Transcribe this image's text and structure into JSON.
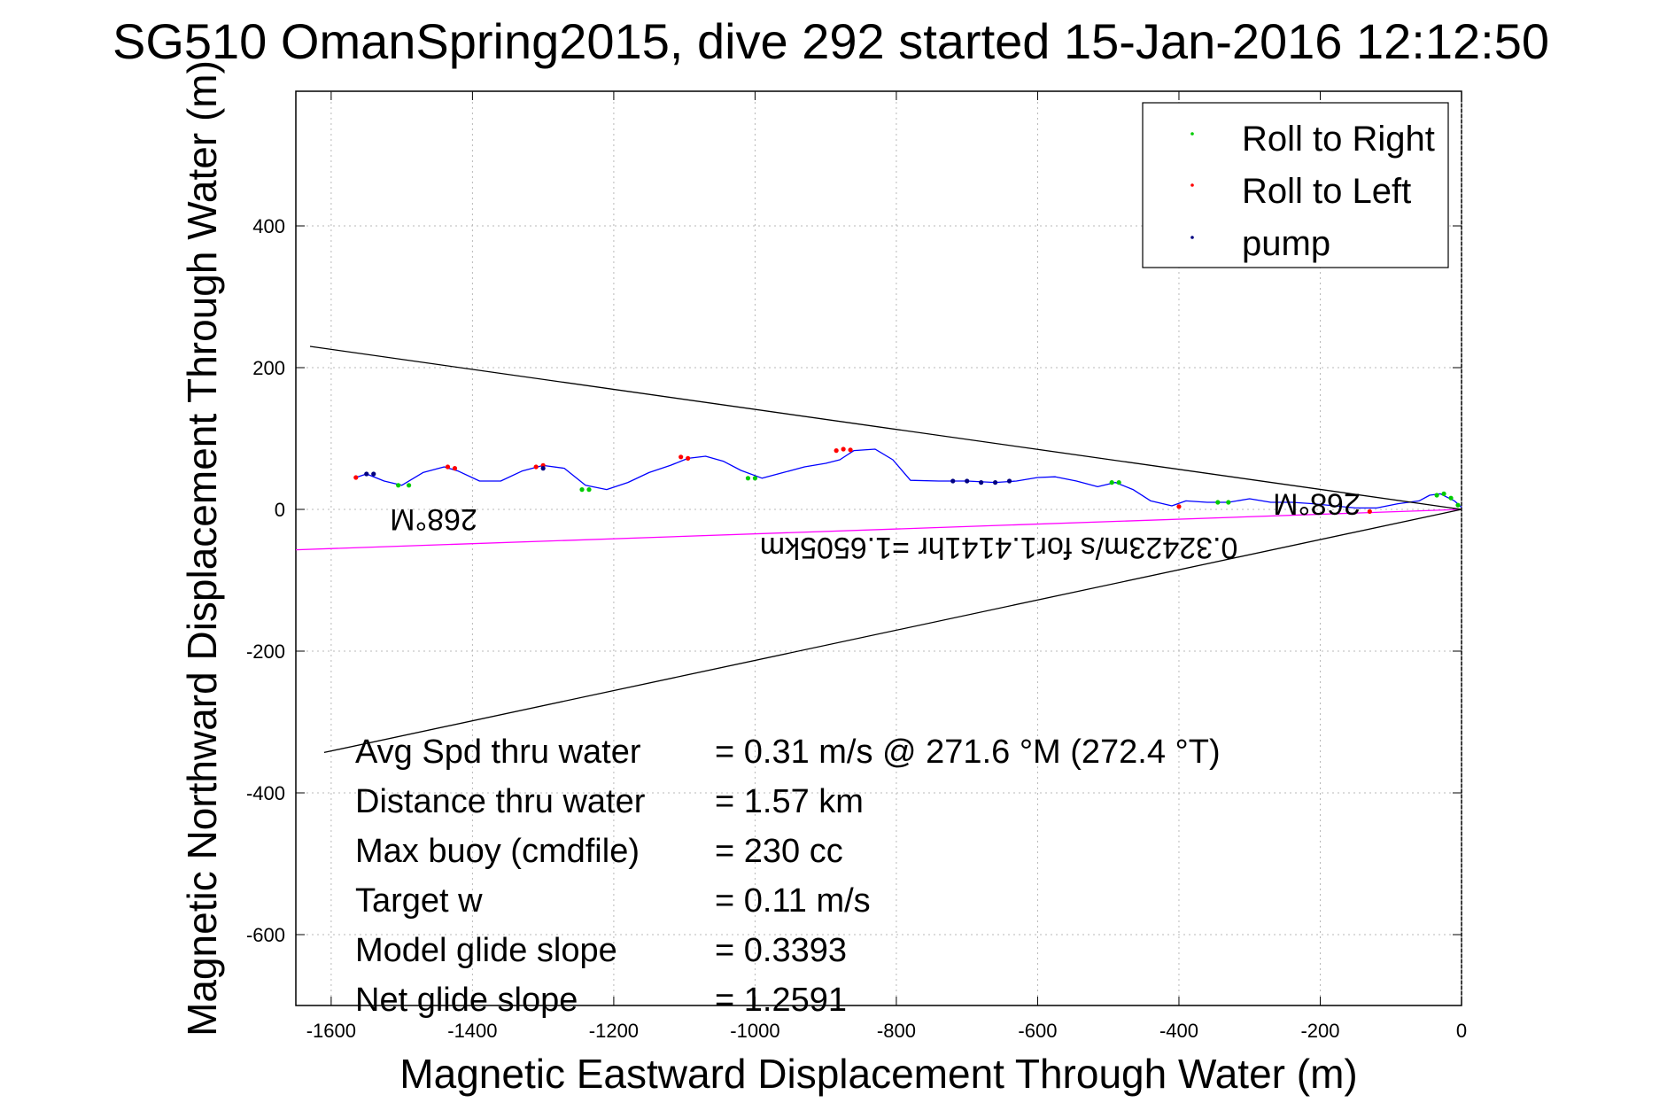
{
  "chart_data": {
    "type": "line",
    "title": "SG510 OmanSpring2015, dive 292 started 15-Jan-2016 12:12:50",
    "xlabel": "Magnetic Eastward Displacement Through Water (m)",
    "ylabel": "Magnetic Northward Displacement Through Water (m)",
    "xlim": [
      -1650,
      0
    ],
    "ylim": [
      -700,
      590
    ],
    "xticks": [
      -1600,
      -1400,
      -1200,
      -1000,
      -800,
      -600,
      -400,
      -200,
      0
    ],
    "yticks": [
      -600,
      -400,
      -200,
      0,
      200,
      400
    ],
    "grid": true,
    "legend": {
      "placement": "top-right",
      "entries": [
        {
          "label": "Roll to Right",
          "color": "#00cc00"
        },
        {
          "label": "Roll to Left",
          "color": "#ff0000"
        },
        {
          "label": "pump",
          "color": "#000080"
        }
      ]
    },
    "series": [
      {
        "color": "#0000ff",
        "x": [
          0,
          -10,
          -30,
          -45,
          -60,
          -90,
          -120,
          -150,
          -180,
          -210,
          -240,
          -270,
          -300,
          -330,
          -360,
          -390,
          -410,
          -440,
          -465,
          -490,
          -515,
          -545,
          -575,
          -600,
          -630,
          -660,
          -700,
          -740,
          -780,
          -805,
          -830,
          -860,
          -880,
          -900,
          -930,
          -960,
          -990,
          -1020,
          -1045,
          -1070,
          -1095,
          -1120,
          -1150,
          -1180,
          -1210,
          -1240,
          -1270,
          -1300,
          -1330,
          -1360,
          -1390,
          -1420,
          -1440,
          -1470,
          -1500,
          -1525,
          -1550,
          -1565
        ],
        "y": [
          3,
          12,
          22,
          20,
          12,
          8,
          2,
          2,
          5,
          8,
          10,
          10,
          15,
          10,
          10,
          12,
          5,
          12,
          28,
          38,
          32,
          40,
          46,
          45,
          40,
          38,
          40,
          40,
          41,
          70,
          85,
          83,
          70,
          65,
          60,
          52,
          44,
          55,
          68,
          75,
          72,
          62,
          52,
          38,
          28,
          34,
          58,
          62,
          54,
          40,
          40,
          54,
          60,
          52,
          34,
          40,
          50,
          45
        ]
      },
      {
        "color": "#ff00ff",
        "x": [
          0,
          -1650
        ],
        "y": [
          0,
          -57
        ]
      },
      {
        "color": "#000000",
        "x": [
          0,
          -1630
        ],
        "y": [
          0,
          230
        ]
      },
      {
        "color": "#000000",
        "x": [
          0,
          -1610
        ],
        "y": [
          0,
          -343
        ]
      }
    ],
    "markers": {
      "roll_right": {
        "color": "#00cc00",
        "x": [
          -5,
          -15,
          -25,
          -35,
          -330,
          -345,
          -485,
          -495,
          -1000,
          -1010,
          -1235,
          -1245,
          -1490,
          -1505
        ],
        "y": [
          6,
          16,
          22,
          20,
          10,
          10,
          38,
          38,
          44,
          44,
          28,
          28,
          34,
          34
        ]
      },
      "roll_left": {
        "color": "#ff0000",
        "x": [
          -130,
          -400,
          -865,
          -875,
          -885,
          -1095,
          -1105,
          -1300,
          -1310,
          -1425,
          -1435,
          -1565
        ],
        "y": [
          -3,
          4,
          84,
          85,
          83,
          72,
          74,
          62,
          60,
          58,
          60,
          45
        ]
      },
      "pump": {
        "color": "#000080",
        "x": [
          -640,
          -660,
          -680,
          -700,
          -720,
          -1300,
          -1540,
          -1550
        ],
        "y": [
          40,
          38,
          38,
          40,
          40,
          58,
          50,
          50
        ]
      }
    },
    "annotations": [
      {
        "text": "268°M",
        "x": -1455,
        "y": 0,
        "rotation": 180
      },
      {
        "text": "268°M",
        "x": -205,
        "y": 22,
        "rotation": 180
      },
      {
        "text": "0.32423m/s for1.4141hr =1.6505km",
        "x": -655,
        "y": -40,
        "rotation": 180
      }
    ],
    "stats": [
      {
        "label": "Avg Spd thru water",
        "value": "=  0.31 m/s @ 271.6 °M (272.4 °T)"
      },
      {
        "label": "Distance thru water",
        "value": "=  1.57 km"
      },
      {
        "label": "Max buoy (cmdfile)",
        "value": "= 230 cc"
      },
      {
        "label": "Target w",
        "value": "= 0.11 m/s"
      },
      {
        "label": "Model glide slope",
        "value": "= 0.3393"
      },
      {
        "label": "Net glide slope",
        "value": "= 1.2591"
      }
    ]
  }
}
